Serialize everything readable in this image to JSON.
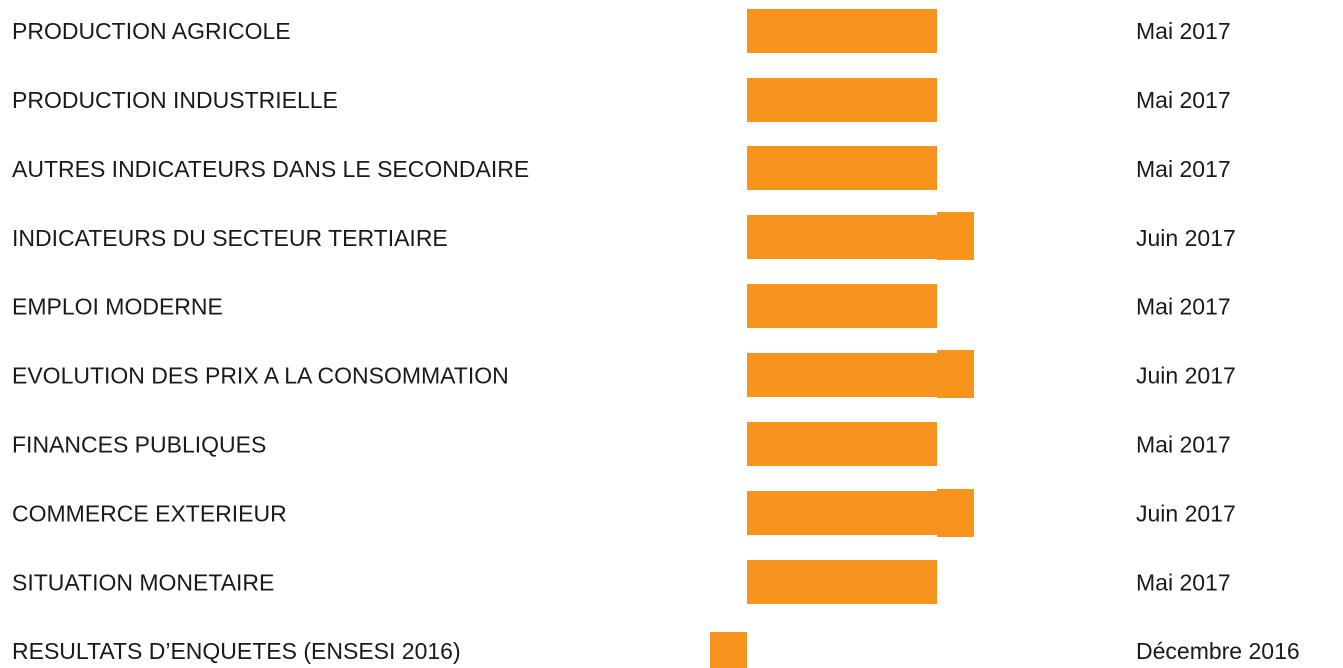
{
  "rows": [
    {
      "label": "PRODUCTION AGRICOLE",
      "date": "Mai 2017"
    },
    {
      "label": "PRODUCTION INDUSTRIELLE",
      "date": "Mai 2017"
    },
    {
      "label": "AUTRES INDICATEURS DANS LE SECONDAIRE",
      "date": "Mai 2017"
    },
    {
      "label": "INDICATEURS DU SECTEUR TERTIAIRE",
      "date": "Juin 2017"
    },
    {
      "label": "EMPLOI MODERNE",
      "date": "Mai 2017"
    },
    {
      "label": "EVOLUTION DES PRIX A LA CONSOMMATION",
      "date": "Juin 2017"
    },
    {
      "label": "FINANCES PUBLIQUES",
      "date": "Mai 2017"
    },
    {
      "label": "COMMERCE EXTERIEUR",
      "date": "Juin 2017"
    },
    {
      "label": "SITUATION MONETAIRE",
      "date": "Mai 2017"
    },
    {
      "label": "RESULTATS D’ENQUETES (ENSESI 2016)",
      "date": "Décembre 2016"
    }
  ]
}
